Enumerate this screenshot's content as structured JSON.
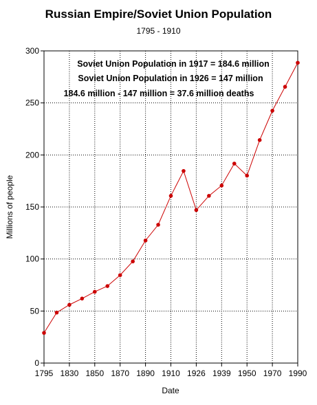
{
  "chart_data": {
    "type": "line",
    "title": "Russian Empire/Soviet Union Population",
    "subtitle": "1795 - 1910",
    "xlabel": "Date",
    "ylabel": "Millions of people",
    "ylim": [
      0,
      300
    ],
    "yticks": [
      "0",
      "50",
      "100",
      "150",
      "200",
      "250",
      "300"
    ],
    "x_tick_labels": [
      "1795",
      "1830",
      "1850",
      "1870",
      "1890",
      "1910",
      "1926",
      "1939",
      "1950",
      "1970",
      "1990"
    ],
    "grid": true,
    "line_color": "#cc0000",
    "marker_color": "#cc0000",
    "series": [
      {
        "values": [
          {
            "x": "1795",
            "y": 29
          },
          {
            "x": "1815",
            "y": 48.5
          },
          {
            "x": "1830",
            "y": 56
          },
          {
            "x": "1840",
            "y": 62
          },
          {
            "x": "1850",
            "y": 68.5
          },
          {
            "x": "1860",
            "y": 74
          },
          {
            "x": "1870",
            "y": 84.5
          },
          {
            "x": "1880",
            "y": 97.7
          },
          {
            "x": "1890",
            "y": 117.8
          },
          {
            "x": "1900",
            "y": 132.9
          },
          {
            "x": "1910",
            "y": 160.7
          },
          {
            "x": "1917",
            "y": 184.6
          },
          {
            "x": "1926",
            "y": 147
          },
          {
            "x": "1930",
            "y": 160.7
          },
          {
            "x": "1939",
            "y": 170.6
          },
          {
            "x": "1940",
            "y": 191.7
          },
          {
            "x": "1950",
            "y": 180.1
          },
          {
            "x": "1960",
            "y": 214.3
          },
          {
            "x": "1970",
            "y": 242.5
          },
          {
            "x": "1980",
            "y": 265.5
          },
          {
            "x": "1990",
            "y": 288.6
          }
        ]
      }
    ],
    "annotations": [
      "Soviet Union Population in 1917 = 184.6 million",
      "Soviet Union Population in 1926 = 147 million",
      "184.6 million - 147 million = 37.6 million deaths"
    ]
  }
}
